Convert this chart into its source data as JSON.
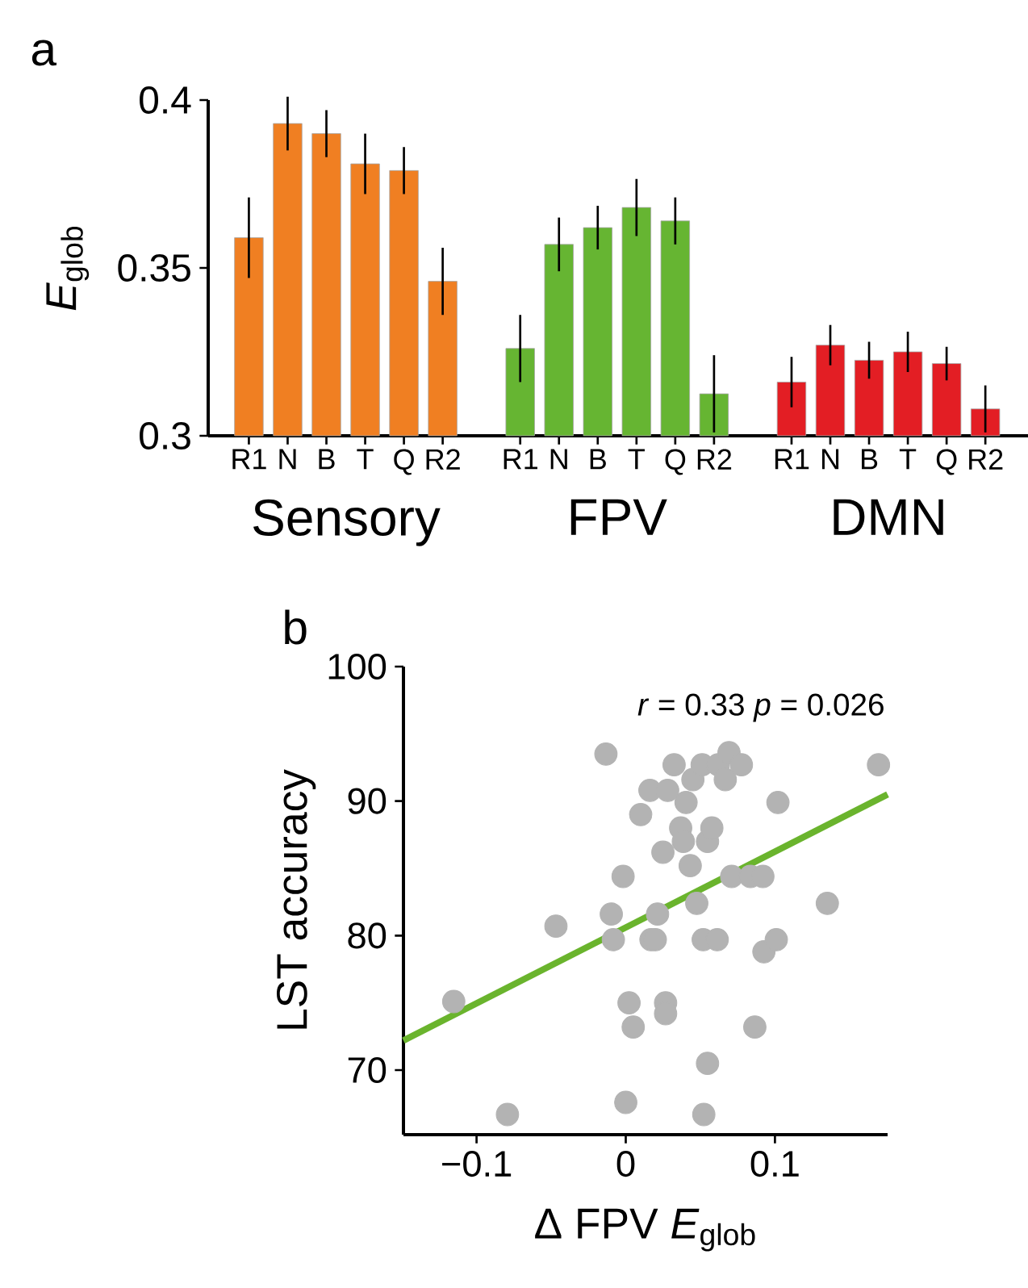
{
  "chart_data": [
    {
      "type": "bar",
      "ylabel": "*E*$_{glob}$",
      "annotations": [
        "a"
      ],
      "categories": [
        "R1",
        "N",
        "B",
        "T",
        "Q",
        "R2",
        null,
        "R1",
        "N",
        "B",
        "T",
        "Q",
        "R2",
        null,
        "R1",
        "N",
        "B",
        "T",
        "Q",
        "R2"
      ],
      "series": [
        {
          "name": "Sensory",
          "color": "#f07f22",
          "values": [
            0.359,
            0.393,
            0.39,
            0.381,
            0.379,
            0.346,
            null,
            null,
            null,
            null,
            null,
            null,
            null,
            null,
            null,
            null,
            null,
            null,
            null,
            null
          ],
          "errors": [
            0.012,
            0.008,
            0.007,
            0.009,
            0.007,
            0.01,
            null,
            null,
            null,
            null,
            null,
            null,
            null,
            null,
            null,
            null,
            null,
            null,
            null,
            null
          ]
        },
        {
          "name": "FPV",
          "color": "#66b532",
          "values": [
            null,
            null,
            null,
            null,
            null,
            null,
            null,
            0.326,
            0.357,
            0.362,
            0.368,
            0.364,
            0.3125,
            null,
            null,
            null,
            null,
            null,
            null,
            null
          ],
          "errors": [
            null,
            null,
            null,
            null,
            null,
            null,
            null,
            0.01,
            0.008,
            0.0065,
            0.0085,
            0.007,
            0.0115,
            null,
            null,
            null,
            null,
            null,
            null,
            null
          ]
        },
        {
          "name": "DMN",
          "color": "#e31e24",
          "values": [
            null,
            null,
            null,
            null,
            null,
            null,
            null,
            null,
            null,
            null,
            null,
            null,
            null,
            null,
            0.316,
            0.327,
            0.3225,
            0.325,
            0.3215,
            0.308
          ],
          "errors": [
            null,
            null,
            null,
            null,
            null,
            null,
            null,
            null,
            null,
            null,
            null,
            null,
            null,
            null,
            0.0075,
            0.006,
            0.0055,
            0.006,
            0.005,
            0.007
          ]
        }
      ],
      "ylim": [
        0.3,
        0.4
      ],
      "yticks": [
        0.3,
        0.35,
        0.4
      ],
      "legend": false,
      "grid": false
    },
    {
      "type": "scatter",
      "xlabel": "Δ FPV *E*$_{glob}$",
      "ylabel": "LST accuracy",
      "annotations": [
        "b",
        "*r* = 0.33 *p* = 0.026"
      ],
      "grid": false,
      "xlim": [
        -0.149,
        0.1755
      ],
      "ylim": [
        65.2,
        100
      ],
      "xticks": [
        {
          "value": -0.1,
          "label": "−0.1"
        },
        0,
        0.1
      ],
      "yticks": [
        70,
        80,
        90,
        100
      ],
      "series": [
        {
          "type": "scatter",
          "marker": "circle",
          "color": "#b3b3b3",
          "x": [
            -0.0133,
            -0.1153,
            -0.0793,
            -0.0468,
            -0.0097,
            -0.0083,
            -0.0018,
            0.0,
            0.0022,
            0.005,
            0.01,
            0.0162,
            0.0169,
            0.0198,
            0.0213,
            0.0249,
            0.0267,
            0.0267,
            0.0281,
            0.0324,
            0.0368,
            0.0386,
            0.0404,
            0.0432,
            0.045,
            0.0476,
            0.0512,
            0.0519,
            0.0523,
            0.0548,
            0.0548,
            0.0577,
            0.0613,
            0.062,
            0.0667,
            0.0692,
            0.071,
            0.0775,
            0.0836,
            0.0865,
            0.0919,
            0.0926,
            0.1009,
            0.102,
            0.1351,
            0.1694
          ],
          "values": [
            93.5,
            75.1,
            66.7,
            80.7,
            81.6,
            79.7,
            84.4,
            67.6,
            75.0,
            73.2,
            89.0,
            90.8,
            79.7,
            79.7,
            81.6,
            86.2,
            75.0,
            74.2,
            90.8,
            92.7,
            88.0,
            87.0,
            89.9,
            85.2,
            91.6,
            82.4,
            92.7,
            79.7,
            66.7,
            70.5,
            87.0,
            88.0,
            79.7,
            92.7,
            91.6,
            93.6,
            84.4,
            92.7,
            84.4,
            73.2,
            84.4,
            78.8,
            79.7,
            89.9,
            82.4,
            92.7
          ]
        },
        {
          "type": "line",
          "marker": "none",
          "color": "#6ab42d",
          "x": [
            -0.149,
            0.1755
          ],
          "values": [
            72.2,
            90.5
          ]
        }
      ]
    }
  ]
}
